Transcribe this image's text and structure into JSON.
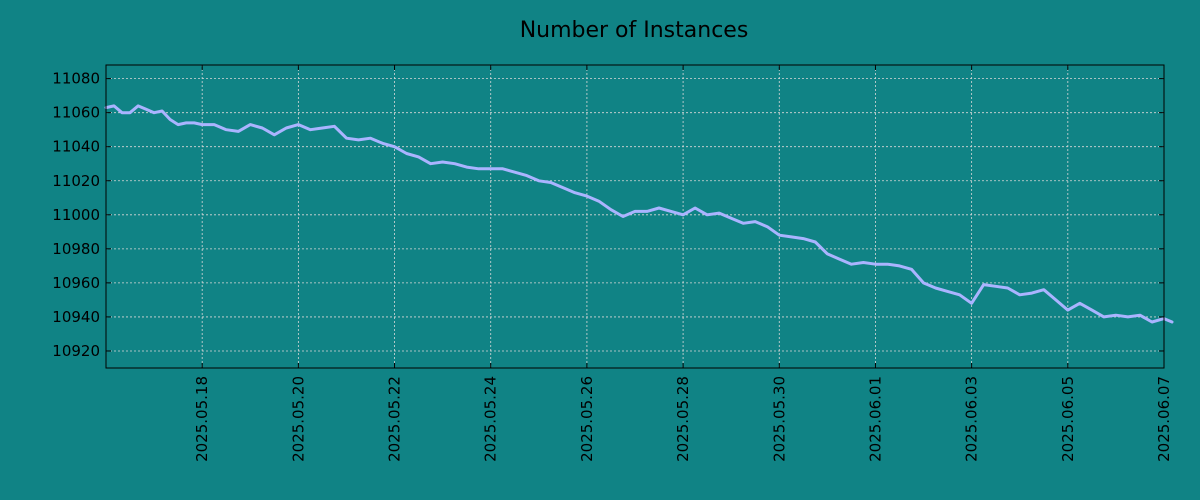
{
  "chart_data": {
    "type": "line",
    "title": "Number of Instances",
    "xlabel": "",
    "ylabel": "",
    "xlim": [
      "2025-05-16",
      "2025-06-07"
    ],
    "ylim": [
      10910,
      11088
    ],
    "grid": true,
    "legend": "none",
    "x_ticks": [
      "2025.05.18",
      "2025.05.20",
      "2025.05.22",
      "2025.05.24",
      "2025.05.26",
      "2025.05.28",
      "2025.05.30",
      "2025.06.01",
      "2025.06.03",
      "2025.06.05",
      "2025.06.07"
    ],
    "y_ticks": [
      10920,
      10940,
      10960,
      10980,
      11000,
      11020,
      11040,
      11060,
      11080
    ],
    "series": [
      {
        "color": "#aab4ff",
        "x": [
          "2025-05-16 00:00",
          "2025-05-16 04:00",
          "2025-05-16 08:00",
          "2025-05-16 12:00",
          "2025-05-16 16:00",
          "2025-05-16 20:00",
          "2025-05-17 00:00",
          "2025-05-17 04:00",
          "2025-05-17 08:00",
          "2025-05-17 12:00",
          "2025-05-17 16:00",
          "2025-05-17 20:00",
          "2025-05-18 00:00",
          "2025-05-18 06:00",
          "2025-05-18 12:00",
          "2025-05-18 18:00",
          "2025-05-19 00:00",
          "2025-05-19 06:00",
          "2025-05-19 12:00",
          "2025-05-19 18:00",
          "2025-05-20 00:00",
          "2025-05-20 06:00",
          "2025-05-20 12:00",
          "2025-05-20 18:00",
          "2025-05-21 00:00",
          "2025-05-21 06:00",
          "2025-05-21 12:00",
          "2025-05-21 18:00",
          "2025-05-22 00:00",
          "2025-05-22 06:00",
          "2025-05-22 12:00",
          "2025-05-22 18:00",
          "2025-05-23 00:00",
          "2025-05-23 06:00",
          "2025-05-23 12:00",
          "2025-05-23 18:00",
          "2025-05-24 00:00",
          "2025-05-24 06:00",
          "2025-05-24 12:00",
          "2025-05-24 18:00",
          "2025-05-25 00:00",
          "2025-05-25 06:00",
          "2025-05-25 12:00",
          "2025-05-25 18:00",
          "2025-05-26 00:00",
          "2025-05-26 06:00",
          "2025-05-26 12:00",
          "2025-05-26 18:00",
          "2025-05-27 00:00",
          "2025-05-27 06:00",
          "2025-05-27 12:00",
          "2025-05-27 18:00",
          "2025-05-28 00:00",
          "2025-05-28 06:00",
          "2025-05-28 12:00",
          "2025-05-28 18:00",
          "2025-05-29 00:00",
          "2025-05-29 06:00",
          "2025-05-29 12:00",
          "2025-05-29 18:00",
          "2025-05-30 00:00",
          "2025-05-30 06:00",
          "2025-05-30 12:00",
          "2025-05-30 18:00",
          "2025-05-31 00:00",
          "2025-05-31 06:00",
          "2025-05-31 12:00",
          "2025-05-31 18:00",
          "2025-06-01 00:00",
          "2025-06-01 06:00",
          "2025-06-01 12:00",
          "2025-06-01 18:00",
          "2025-06-02 00:00",
          "2025-06-02 06:00",
          "2025-06-02 12:00",
          "2025-06-02 18:00",
          "2025-06-03 00:00",
          "2025-06-03 06:00",
          "2025-06-03 12:00",
          "2025-06-03 18:00",
          "2025-06-04 00:00",
          "2025-06-04 06:00",
          "2025-06-04 12:00",
          "2025-06-04 18:00",
          "2025-06-05 00:00",
          "2025-06-05 06:00",
          "2025-06-05 12:00",
          "2025-06-05 18:00",
          "2025-06-06 00:00",
          "2025-06-06 06:00",
          "2025-06-06 12:00",
          "2025-06-06 18:00",
          "2025-06-07 00:00",
          "2025-06-07 04:00"
        ],
        "y": [
          11063,
          11064,
          11060,
          11060,
          11064,
          11062,
          11060,
          11061,
          11056,
          11053,
          11054,
          11054,
          11053,
          11053,
          11050,
          11049,
          11053,
          11051,
          11047,
          11051,
          11053,
          11050,
          11051,
          11052,
          11045,
          11044,
          11045,
          11042,
          11040,
          11036,
          11034,
          11030,
          11031,
          11030,
          11028,
          11027,
          11027,
          11027,
          11025,
          11023,
          11020,
          11019,
          11016,
          11013,
          11011,
          11008,
          11003,
          10999,
          11002,
          11002,
          11004,
          11002,
          11000,
          11004,
          11000,
          11001,
          10998,
          10995,
          10996,
          10993,
          10988,
          10987,
          10986,
          10984,
          10977,
          10974,
          10971,
          10972,
          10971,
          10971,
          10970,
          10968,
          10960,
          10957,
          10955,
          10953,
          10948,
          10959,
          10958,
          10957,
          10953,
          10954,
          10956,
          10950,
          10944,
          10948,
          10944,
          10940,
          10941,
          10940,
          10941,
          10937,
          10939,
          10937
        ]
      }
    ]
  }
}
